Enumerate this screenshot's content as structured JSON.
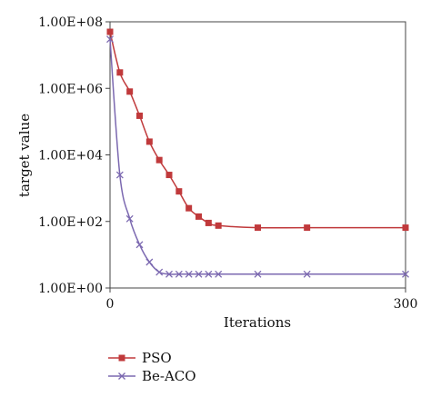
{
  "chart_data": {
    "type": "line",
    "title": "",
    "xlabel": "Iterations",
    "ylabel": "target value",
    "xlim": [
      0,
      300
    ],
    "ylim": [
      1,
      100000000
    ],
    "y_scale": "log",
    "x_tick_labels": [
      {
        "value": 0,
        "label": "0"
      },
      {
        "value": 300,
        "label": "300"
      }
    ],
    "y_tick_labels": [
      {
        "value": 1,
        "label": "1.00E+00"
      },
      {
        "value": 100,
        "label": "1.00E+02"
      },
      {
        "value": 10000,
        "label": "1.00E+04"
      },
      {
        "value": 1000000,
        "label": "1.00E+06"
      },
      {
        "value": 100000000,
        "label": "1.00E+08"
      }
    ],
    "grid": false,
    "legend_position": "bottom-left",
    "series": [
      {
        "name": "PSO",
        "color": "#c0393b",
        "marker": "square",
        "x": [
          0,
          10,
          20,
          30,
          40,
          50,
          60,
          70,
          80,
          90,
          100,
          110,
          150,
          200,
          300
        ],
        "y": [
          50000000,
          3000000,
          800000,
          150000,
          25000,
          7000,
          2500,
          800,
          250,
          140,
          90,
          75,
          65,
          65,
          65
        ]
      },
      {
        "name": "Be-ACO",
        "color": "#7b68b0",
        "marker": "x",
        "x": [
          0,
          10,
          20,
          30,
          40,
          50,
          60,
          70,
          80,
          90,
          100,
          110,
          150,
          200,
          300
        ],
        "y": [
          30000000,
          2500,
          120,
          20,
          6,
          3,
          2.6,
          2.6,
          2.6,
          2.6,
          2.6,
          2.6,
          2.6,
          2.6,
          2.6
        ]
      }
    ]
  }
}
